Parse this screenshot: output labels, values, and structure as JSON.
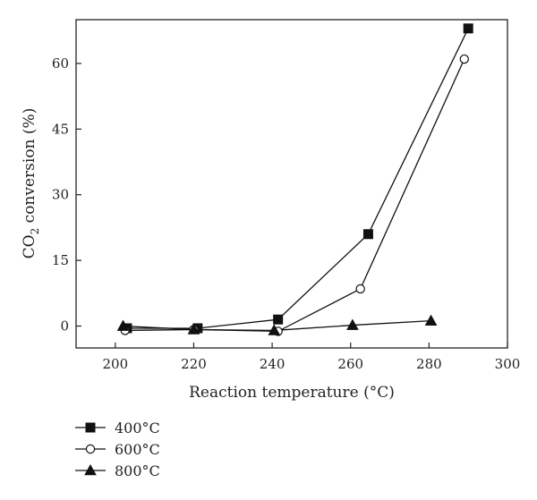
{
  "chart_data": {
    "type": "line",
    "xlabel": "Reaction temperature (°C)",
    "ylabel_main": "CO",
    "ylabel_sub": "2",
    "ylabel_rest": " conversion (%)",
    "xlim": [
      190,
      300
    ],
    "ylim": [
      -5,
      70
    ],
    "xticks": [
      200,
      220,
      240,
      260,
      280,
      300
    ],
    "xtick_labels": [
      "200",
      "220",
      "240",
      "260",
      "280",
      "300"
    ],
    "yticks": [
      0,
      15,
      30,
      45,
      60
    ],
    "ytick_labels": [
      "0",
      "15",
      "30",
      "45",
      "60"
    ],
    "legend_position": "bottom-left-outside",
    "series": [
      {
        "name": "400°C",
        "marker": "square-filled",
        "x": [
          203,
          221,
          241.5,
          264.5,
          290
        ],
        "y": [
          -0.5,
          -0.5,
          1.5,
          21,
          68
        ]
      },
      {
        "name": "600°C",
        "marker": "circle-open",
        "x": [
          202.5,
          220,
          241.5,
          262.5,
          289
        ],
        "y": [
          -1,
          -0.8,
          -1.2,
          8.5,
          61
        ]
      },
      {
        "name": "800°C",
        "marker": "triangle-filled",
        "x": [
          202,
          220,
          240.5,
          260.5,
          280.5
        ],
        "y": [
          0,
          -0.8,
          -1,
          0.2,
          1.2
        ]
      }
    ]
  }
}
